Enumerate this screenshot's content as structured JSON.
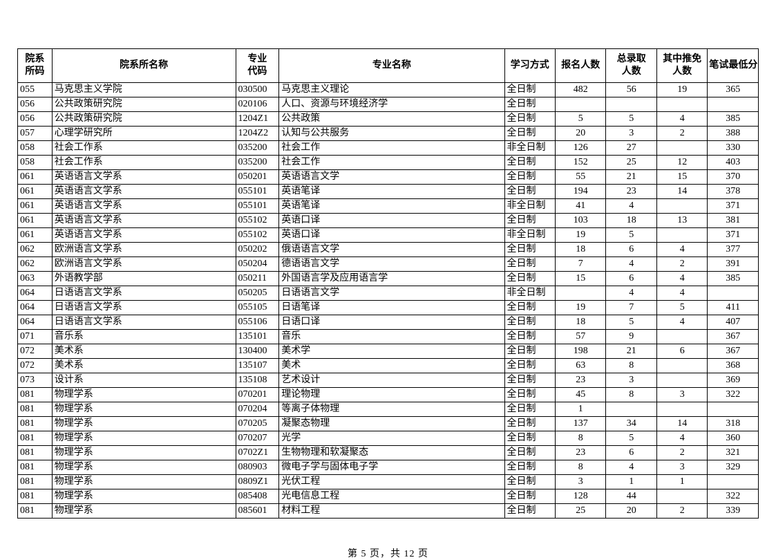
{
  "columns": [
    "院系\n所码",
    "院系所名称",
    "专业\n代码",
    "专业名称",
    "学习方式",
    "报名人数",
    "总录取\n人数",
    "其中推免\n人数",
    "笔试最低分"
  ],
  "colWidths": [
    "col-code1",
    "col-dept",
    "col-code2",
    "col-major",
    "col-mode",
    "col-num",
    "col-num",
    "col-num",
    "col-num"
  ],
  "colAlign": [
    "c-left",
    "c-left",
    "c-left",
    "c-left",
    "c-left",
    "c-center",
    "c-center",
    "c-center",
    "c-center"
  ],
  "rows": [
    [
      "055",
      "马克思主义学院",
      "030500",
      "马克思主义理论",
      "全日制",
      "482",
      "56",
      "19",
      "365"
    ],
    [
      "056",
      "公共政策研究院",
      "020106",
      "人口、资源与环境经济学",
      "全日制",
      "",
      "",
      "",
      ""
    ],
    [
      "056",
      "公共政策研究院",
      "1204Z1",
      "公共政策",
      "全日制",
      "5",
      "5",
      "4",
      "385"
    ],
    [
      "057",
      "心理学研究所",
      "1204Z2",
      "认知与公共服务",
      "全日制",
      "20",
      "3",
      "2",
      "388"
    ],
    [
      "058",
      "社会工作系",
      "035200",
      "社会工作",
      "非全日制",
      "126",
      "27",
      "",
      "330"
    ],
    [
      "058",
      "社会工作系",
      "035200",
      "社会工作",
      "全日制",
      "152",
      "25",
      "12",
      "403"
    ],
    [
      "061",
      "英语语言文学系",
      "050201",
      "英语语言文学",
      "全日制",
      "55",
      "21",
      "15",
      "370"
    ],
    [
      "061",
      "英语语言文学系",
      "055101",
      "英语笔译",
      "全日制",
      "194",
      "23",
      "14",
      "378"
    ],
    [
      "061",
      "英语语言文学系",
      "055101",
      "英语笔译",
      "非全日制",
      "41",
      "4",
      "",
      "371"
    ],
    [
      "061",
      "英语语言文学系",
      "055102",
      "英语口译",
      "全日制",
      "103",
      "18",
      "13",
      "381"
    ],
    [
      "061",
      "英语语言文学系",
      "055102",
      "英语口译",
      "非全日制",
      "19",
      "5",
      "",
      "371"
    ],
    [
      "062",
      "欧洲语言文学系",
      "050202",
      "俄语语言文学",
      "全日制",
      "18",
      "6",
      "4",
      "377"
    ],
    [
      "062",
      "欧洲语言文学系",
      "050204",
      "德语语言文学",
      "全日制",
      "7",
      "4",
      "2",
      "391"
    ],
    [
      "063",
      "外语教学部",
      "050211",
      "外国语言学及应用语言学",
      "全日制",
      "15",
      "6",
      "4",
      "385"
    ],
    [
      "064",
      "日语语言文学系",
      "050205",
      "日语语言文学",
      "非全日制",
      "",
      "4",
      "4",
      ""
    ],
    [
      "064",
      "日语语言文学系",
      "055105",
      "日语笔译",
      "全日制",
      "19",
      "7",
      "5",
      "411"
    ],
    [
      "064",
      "日语语言文学系",
      "055106",
      "日语口译",
      "全日制",
      "18",
      "5",
      "4",
      "407"
    ],
    [
      "071",
      "音乐系",
      "135101",
      "音乐",
      "全日制",
      "57",
      "9",
      "",
      "367"
    ],
    [
      "072",
      "美术系",
      "130400",
      "美术学",
      "全日制",
      "198",
      "21",
      "6",
      "367"
    ],
    [
      "072",
      "美术系",
      "135107",
      "美术",
      "全日制",
      "63",
      "8",
      "",
      "368"
    ],
    [
      "073",
      "设计系",
      "135108",
      "艺术设计",
      "全日制",
      "23",
      "3",
      "",
      "369"
    ],
    [
      "081",
      "物理学系",
      "070201",
      "理论物理",
      "全日制",
      "45",
      "8",
      "3",
      "322"
    ],
    [
      "081",
      "物理学系",
      "070204",
      "等离子体物理",
      "全日制",
      "1",
      "",
      "",
      ""
    ],
    [
      "081",
      "物理学系",
      "070205",
      "凝聚态物理",
      "全日制",
      "137",
      "34",
      "14",
      "318"
    ],
    [
      "081",
      "物理学系",
      "070207",
      "光学",
      "全日制",
      "8",
      "5",
      "4",
      "360"
    ],
    [
      "081",
      "物理学系",
      "0702Z1",
      "生物物理和软凝聚态",
      "全日制",
      "23",
      "6",
      "2",
      "321"
    ],
    [
      "081",
      "物理学系",
      "080903",
      "微电子学与固体电子学",
      "全日制",
      "8",
      "4",
      "3",
      "329"
    ],
    [
      "081",
      "物理学系",
      "0809Z1",
      "光伏工程",
      "全日制",
      "3",
      "1",
      "1",
      ""
    ],
    [
      "081",
      "物理学系",
      "085408",
      "光电信息工程",
      "全日制",
      "128",
      "44",
      "",
      "322"
    ],
    [
      "081",
      "物理学系",
      "085601",
      "材料工程",
      "全日制",
      "25",
      "20",
      "2",
      "339"
    ]
  ],
  "footer": "第 5 页，共 12 页"
}
